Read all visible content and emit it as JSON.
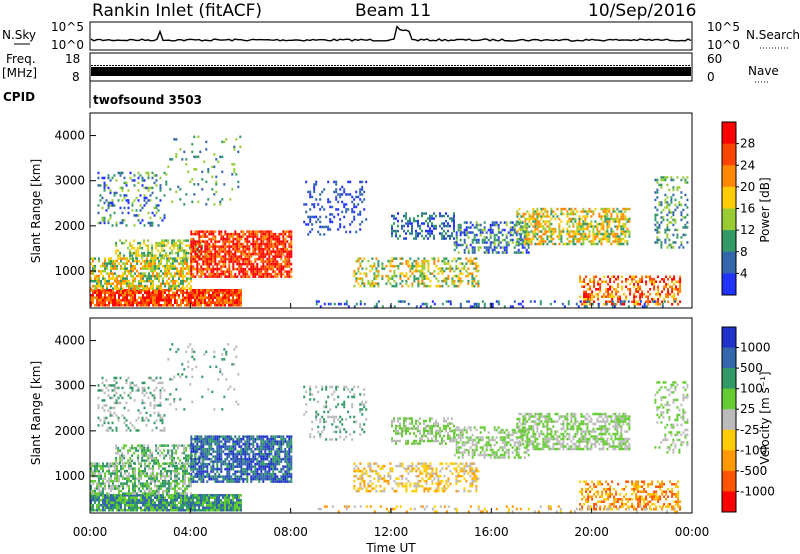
{
  "header": {
    "station": "Rankin Inlet (fitACF)",
    "beam": "Beam 11",
    "date": "10/Sep/2016"
  },
  "panels": {
    "nsky": {
      "label_left": "N.Sky",
      "label_right": "N.Search",
      "left_ticks": [
        "10^5",
        "10^0"
      ],
      "right_ticks": [
        "10^5",
        "10^0"
      ]
    },
    "freq": {
      "label_top": "Freq.",
      "label_unit": "[MHz]",
      "label_right": "Nave",
      "left_ticks": [
        "18",
        "8"
      ],
      "right_ticks": [
        "60",
        "0"
      ]
    },
    "cpid": {
      "label": "CPID",
      "program": "twofsound 3503"
    }
  },
  "chart_data": [
    {
      "type": "heatmap",
      "name": "power",
      "ylabel": "Slant Range [km]",
      "ylim": [
        180,
        4500
      ],
      "yticks": [
        "4000",
        "3000",
        "2000",
        "1000"
      ],
      "colorbar": {
        "label": "Power [dB]",
        "levels": [
          "28",
          "24",
          "20",
          "16",
          "12",
          "8",
          "4"
        ],
        "colors": [
          "#ff0000",
          "#ff4400",
          "#ff8800",
          "#ffcc00",
          "#99cc33",
          "#339966",
          "#3366aa",
          "#2233ff"
        ]
      }
    },
    {
      "type": "heatmap",
      "name": "velocity",
      "ylabel": "Slant Range [km]",
      "ylim": [
        180,
        4500
      ],
      "yticks": [
        "4000",
        "3000",
        "2000",
        "1000"
      ],
      "colorbar": {
        "label": "Velocity [m s⁻¹]",
        "levels": [
          "1000",
          "500",
          "100",
          "25",
          "-25",
          "-100",
          "-500",
          "-1000"
        ],
        "colors": [
          "#2233cc",
          "#3366aa",
          "#339966",
          "#66cc33",
          "#bbbbbb",
          "#ffcc00",
          "#ff9900",
          "#ff5500",
          "#ff0000"
        ]
      }
    }
  ],
  "xaxis": {
    "label": "Time UT",
    "ticks": [
      "00:00",
      "04:00",
      "08:00",
      "12:00",
      "16:00",
      "20:00",
      "00:00"
    ]
  }
}
